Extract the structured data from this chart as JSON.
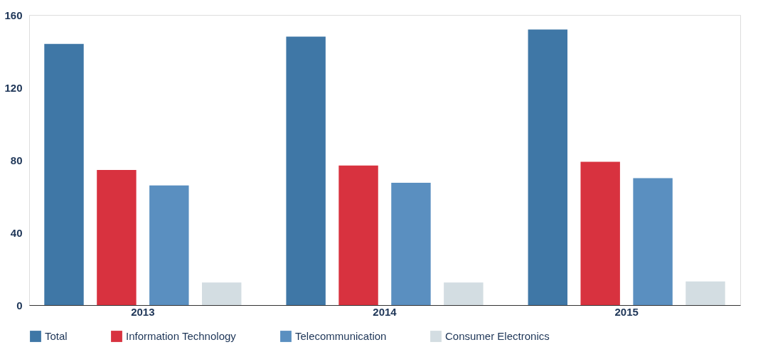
{
  "chart_data": {
    "type": "bar",
    "categories": [
      "2013",
      "2014",
      "2015"
    ],
    "series": [
      {
        "name": "Total",
        "color": "#3f77a6",
        "values": [
          144,
          148,
          152
        ]
      },
      {
        "name": "Information Technology",
        "color": "#d8323f",
        "values": [
          74.5,
          77,
          79
        ]
      },
      {
        "name": "Telecommunication",
        "color": "#5a8fc0",
        "values": [
          66,
          67.5,
          70
        ]
      },
      {
        "name": "Consumer Electronics",
        "color": "#d3dde2",
        "values": [
          12.5,
          12.5,
          13
        ]
      }
    ],
    "ylim": [
      0,
      160
    ],
    "yticks": [
      0,
      40,
      80,
      120,
      160
    ],
    "grid": false,
    "legend": "bottom"
  }
}
